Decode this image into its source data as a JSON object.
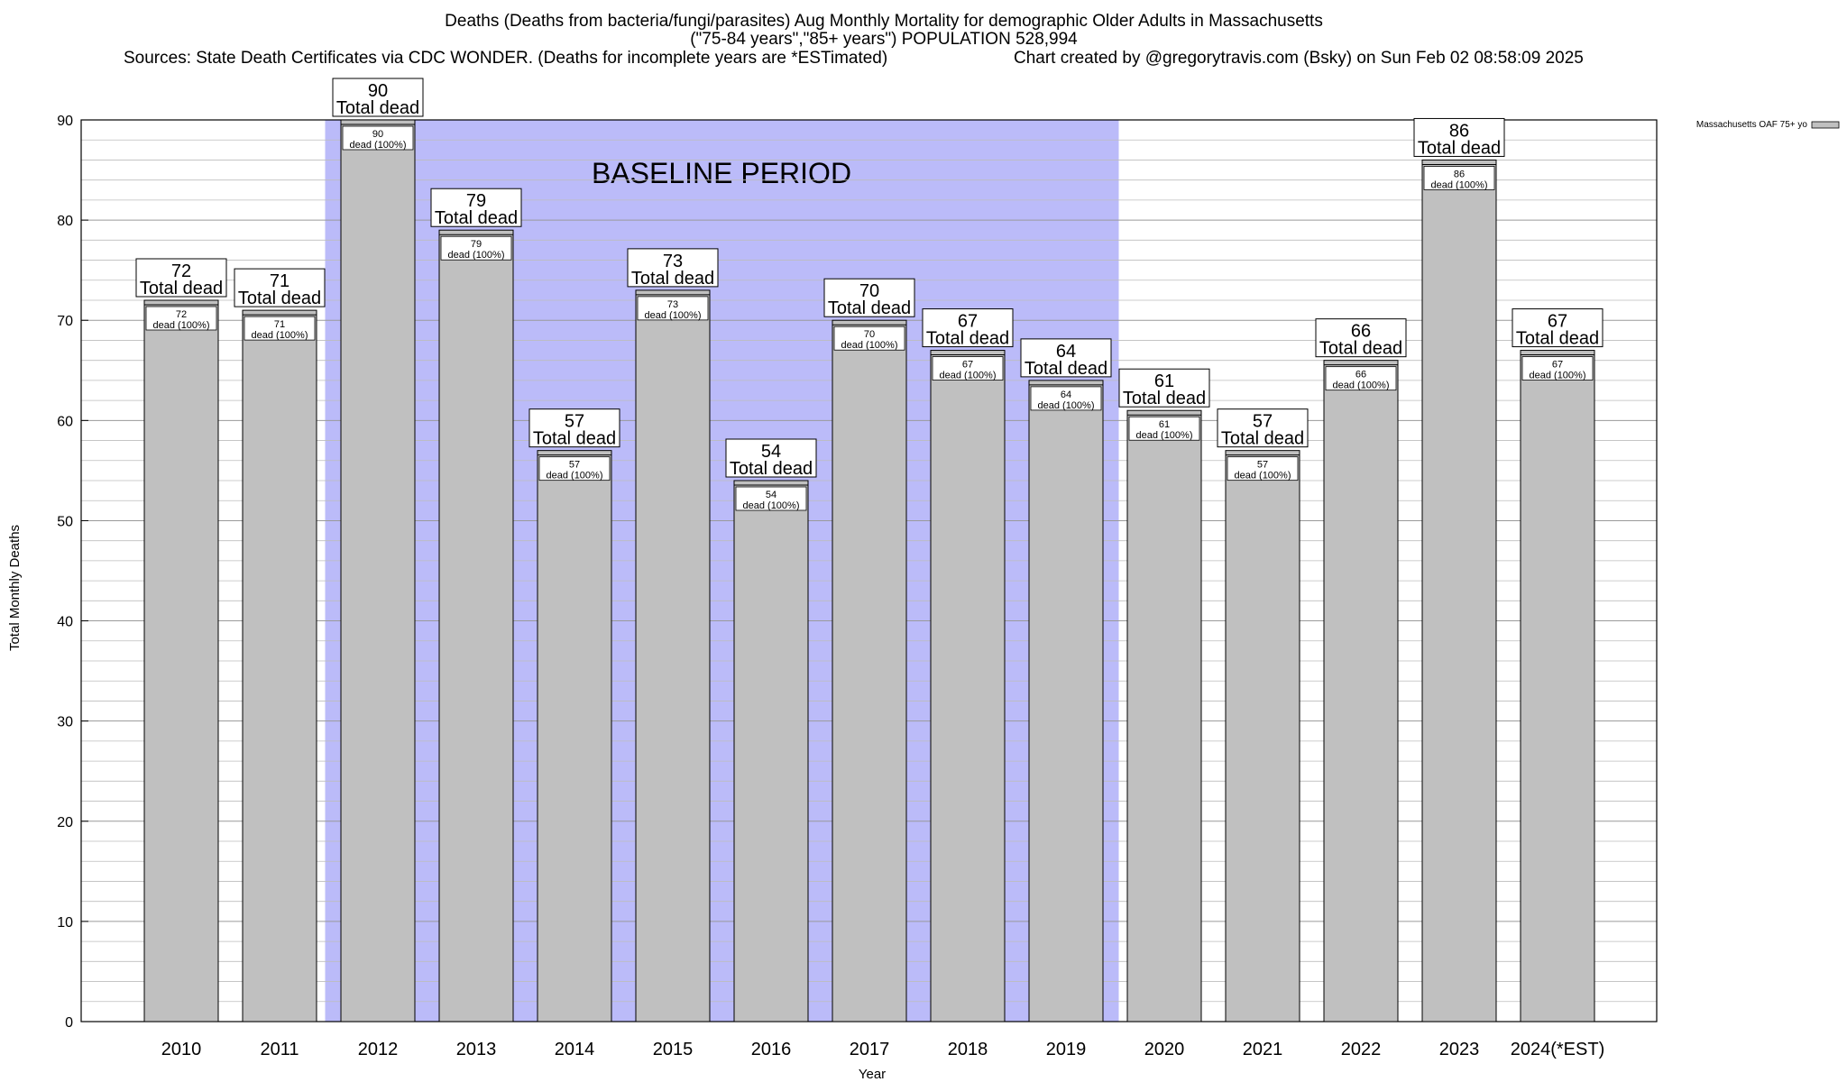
{
  "header": {
    "title_line1": "Deaths (Deaths from bacteria/fungi/parasites) Aug Monthly Mortality for demographic Older Adults in Massachusetts",
    "title_line2": "(\"75-84 years\",\"85+ years\") POPULATION 528,994",
    "sources": "Sources: State Death Certificates via CDC WONDER. (Deaths for incomplete years are *ESTimated)",
    "credit": "Chart created by @gregorytravis.com (Bsky) on Sun Feb 02 08:58:09 2025"
  },
  "chart_data": {
    "type": "bar",
    "categories": [
      "2010",
      "2011",
      "2012",
      "2013",
      "2014",
      "2015",
      "2016",
      "2017",
      "2018",
      "2019",
      "2020",
      "2021",
      "2022",
      "2023",
      "2024(*EST)"
    ],
    "series": [
      {
        "name": "Massachusetts OAF 75+ yo",
        "values": [
          72,
          71,
          90,
          79,
          57,
          73,
          54,
          70,
          67,
          64,
          61,
          57,
          66,
          86,
          67
        ]
      }
    ],
    "top_label_suffix": "Total dead",
    "inner_label_suffix": "dead (100%)",
    "xlabel": "Year",
    "ylabel": "Total Monthly Deaths",
    "ylim": [
      0,
      90
    ],
    "yticks": [
      0,
      10,
      20,
      30,
      40,
      50,
      60,
      70,
      80,
      90
    ],
    "minor_grid_step": 2,
    "grid": true,
    "legend_position": "top-right",
    "baseline_period": {
      "label": "BASELINE PERIOD",
      "start_category": "2012",
      "end_category": "2019"
    },
    "colors": {
      "bar": "#c0c0c0",
      "baseline": "#bbbbf9",
      "grid": "#bdbdbd"
    }
  }
}
